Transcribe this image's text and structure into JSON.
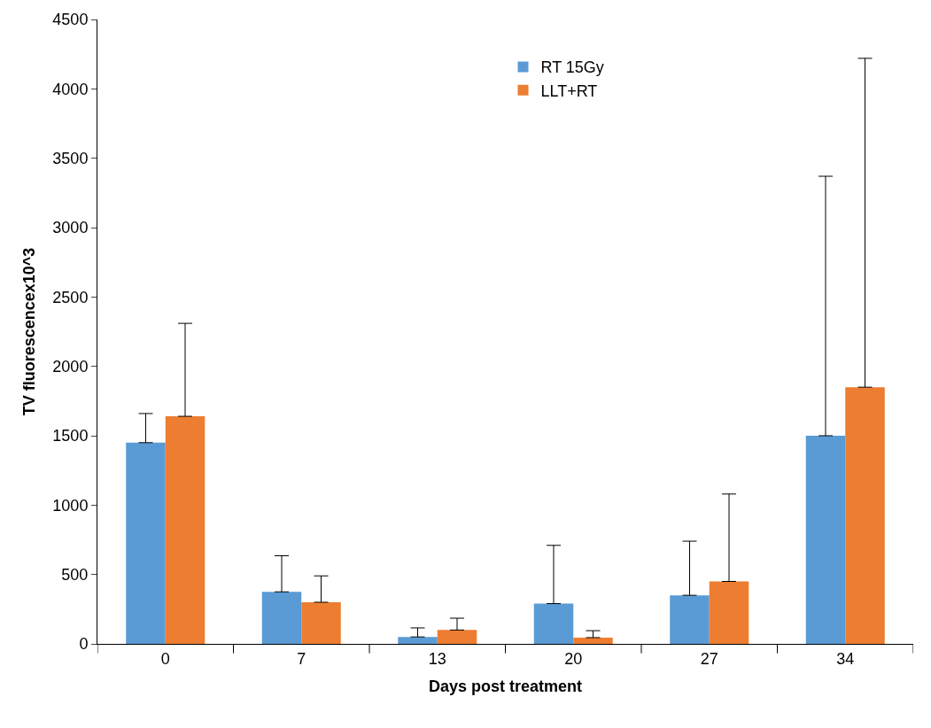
{
  "chart_data": {
    "type": "bar",
    "xlabel": "Days post treatment",
    "ylabel": "TV fluorescencex10^3",
    "categories": [
      "0",
      "7",
      "13",
      "20",
      "27",
      "34"
    ],
    "series": [
      {
        "name": "RT 15Gy",
        "color": "#5b9bd5",
        "values": [
          1450,
          375,
          50,
          290,
          350,
          1500
        ],
        "errors": [
          [
            1450,
            1660
          ],
          [
            375,
            635
          ],
          [
            50,
            115
          ],
          [
            290,
            710
          ],
          [
            350,
            740
          ],
          [
            1500,
            3370
          ]
        ]
      },
      {
        "name": "LLT+RT",
        "color": "#ed7d31",
        "values": [
          1640,
          300,
          100,
          45,
          450,
          1850
        ],
        "errors": [
          [
            1640,
            2310
          ],
          [
            300,
            490
          ],
          [
            100,
            185
          ],
          [
            45,
            95
          ],
          [
            450,
            1080
          ],
          [
            1850,
            4220
          ]
        ]
      }
    ],
    "ylim": [
      0,
      4500
    ],
    "yticks": [
      0,
      500,
      1000,
      1500,
      2000,
      2500,
      3000,
      3500,
      4000,
      4500
    ],
    "legend": "top"
  }
}
